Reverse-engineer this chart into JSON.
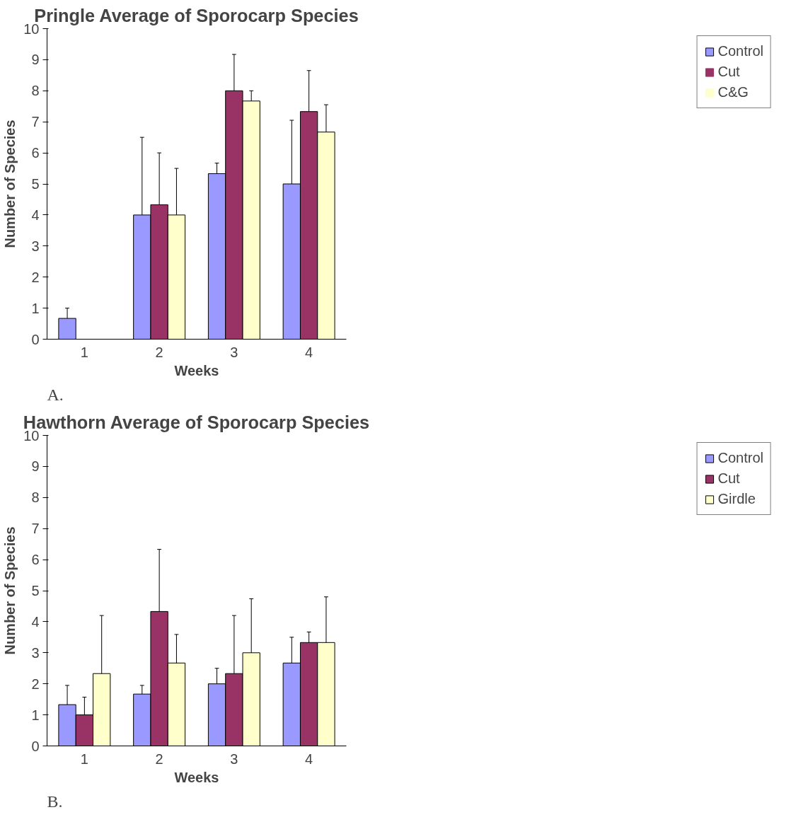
{
  "chart_data": [
    {
      "type": "bar",
      "title": "Pringle Average of Sporocarp Species",
      "xlabel": "Weeks",
      "ylabel": "Number of Species",
      "annotations": [
        "A."
      ],
      "categories": [
        "1",
        "2",
        "3",
        "4"
      ],
      "ylim": [
        0,
        10
      ],
      "yticks": [
        0,
        1,
        2,
        3,
        4,
        5,
        6,
        7,
        8,
        9,
        10
      ],
      "legend": "right",
      "series": [
        {
          "name": "Control",
          "color": "#9999ff",
          "values": [
            0.67,
            4,
            5.33,
            5
          ],
          "errors": [
            [
              0.67,
              1.0
            ],
            [
              4,
              6.5
            ],
            [
              5.33,
              5.67
            ],
            [
              5,
              7.05
            ]
          ]
        },
        {
          "name": "Cut",
          "color": "#993366",
          "values": [
            0,
            4.33,
            8,
            7.33
          ],
          "errors": [
            null,
            [
              4.33,
              6.0
            ],
            [
              8,
              9.17
            ],
            [
              7.33,
              8.65
            ]
          ]
        },
        {
          "name": "C&G",
          "color": "#ffffcc",
          "values": [
            0,
            4,
            7.67,
            6.67
          ],
          "errors": [
            null,
            [
              4,
              5.5
            ],
            [
              7.67,
              8.0
            ],
            [
              6.67,
              7.55
            ]
          ]
        }
      ]
    },
    {
      "type": "bar",
      "title": "Hawthorn Average of Sporocarp Species",
      "xlabel": "Weeks",
      "ylabel": "Number of Species",
      "annotations": [
        "B."
      ],
      "categories": [
        "1",
        "2",
        "3",
        "4"
      ],
      "ylim": [
        0,
        10
      ],
      "yticks": [
        0,
        1,
        2,
        3,
        4,
        5,
        6,
        7,
        8,
        9,
        10
      ],
      "legend": "right",
      "series": [
        {
          "name": "Control",
          "color": "#9999ff",
          "values": [
            1.33,
            1.67,
            2,
            2.67
          ],
          "errors": [
            [
              1.33,
              1.95
            ],
            [
              1.67,
              1.95
            ],
            [
              2,
              2.5
            ],
            [
              2.67,
              3.5
            ]
          ]
        },
        {
          "name": "Cut",
          "color": "#993366",
          "values": [
            1,
            4.33,
            2.33,
            3.33
          ],
          "errors": [
            [
              1,
              1.57
            ],
            [
              4.33,
              6.33
            ],
            [
              2.33,
              4.2
            ],
            [
              3.33,
              3.67
            ]
          ]
        },
        {
          "name": "Girdle",
          "color": "#ffffcc",
          "values": [
            2.33,
            2.67,
            3,
            3.33
          ],
          "errors": [
            [
              2.33,
              4.2
            ],
            [
              2.67,
              3.59
            ],
            [
              3,
              4.74
            ],
            [
              3.33,
              4.8
            ]
          ]
        }
      ]
    }
  ]
}
